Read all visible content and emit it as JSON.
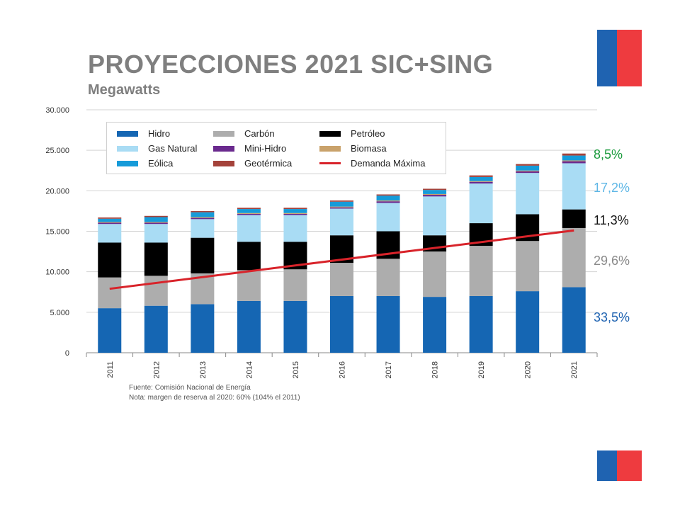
{
  "slide": {
    "title": "PROYECCIONES 2021 SIC+SING",
    "subtitle": "Megawatts",
    "footnote_source": "Fuente: Comisión Nacional de Energía",
    "footnote_note": "Nota: margen de reserva al 2020: 60% (104% el 2011)",
    "flag_colors": [
      "#1f63b1",
      "#ee3b3f"
    ]
  },
  "shares": [
    {
      "label": "8,5%",
      "color": "#1a9a3c"
    },
    {
      "label": "17,2%",
      "color": "#5fb7e6"
    },
    {
      "label": "11,3%",
      "color": "#111111"
    },
    {
      "label": "29,6%",
      "color": "#8a8a8a"
    },
    {
      "label": "33,5%",
      "color": "#1f63b1"
    }
  ],
  "chart_data": {
    "type": "bar",
    "stacked": true,
    "categories": [
      "2011",
      "2012",
      "2013",
      "2014",
      "2015",
      "2016",
      "2017",
      "2018",
      "2019",
      "2020",
      "2021"
    ],
    "ylim": [
      0,
      30000
    ],
    "yticks": [
      "0",
      "5.000",
      "10.000",
      "15.000",
      "20.000",
      "25.000",
      "30.000"
    ],
    "ytick_values": [
      0,
      5000,
      10000,
      15000,
      20000,
      25000,
      30000
    ],
    "grid": true,
    "legend_position": "top-left",
    "series": [
      {
        "name": "Hidro",
        "color": "#1566b3",
        "values": [
          5500,
          5800,
          6000,
          6400,
          6400,
          7000,
          7000,
          6900,
          7000,
          7600,
          8100
        ]
      },
      {
        "name": "Carbón",
        "color": "#adadad",
        "values": [
          3800,
          3700,
          3800,
          3800,
          3900,
          4100,
          4600,
          5600,
          6200,
          6200,
          7300
        ]
      },
      {
        "name": "Petróleo",
        "color": "#000000",
        "values": [
          4300,
          4100,
          4400,
          3500,
          3400,
          3400,
          3400,
          2000,
          2800,
          3300,
          2300
        ]
      },
      {
        "name": "Gas Natural",
        "color": "#a9dcf4",
        "values": [
          2300,
          2300,
          2300,
          3300,
          3300,
          3300,
          3500,
          4800,
          4900,
          5100,
          5700
        ]
      },
      {
        "name": "Mini-Hidro",
        "color": "#6a2a8e",
        "values": [
          150,
          150,
          150,
          150,
          150,
          150,
          200,
          200,
          200,
          200,
          250
        ]
      },
      {
        "name": "Biomasa",
        "color": "#c9a26b",
        "values": [
          100,
          100,
          100,
          100,
          100,
          100,
          100,
          100,
          100,
          100,
          100
        ]
      },
      {
        "name": "Eólica",
        "color": "#169bd9",
        "values": [
          400,
          600,
          600,
          500,
          500,
          600,
          600,
          500,
          500,
          600,
          600
        ]
      },
      {
        "name": "Geotérmica",
        "color": "#a4423a",
        "values": [
          150,
          150,
          150,
          150,
          150,
          150,
          150,
          150,
          200,
          200,
          250
        ]
      }
    ],
    "line": {
      "name": "Demanda Máxima",
      "color": "#d8232a",
      "from": {
        "x": "2011",
        "y": 7900
      },
      "to": {
        "x": "2021",
        "y": 15100
      }
    },
    "legend_order": [
      "Hidro",
      "Carbón",
      "Petróleo",
      "Gas Natural",
      "Mini-Hidro",
      "Biomasa",
      "Eólica",
      "Geotérmica",
      "Demanda Máxima"
    ]
  }
}
